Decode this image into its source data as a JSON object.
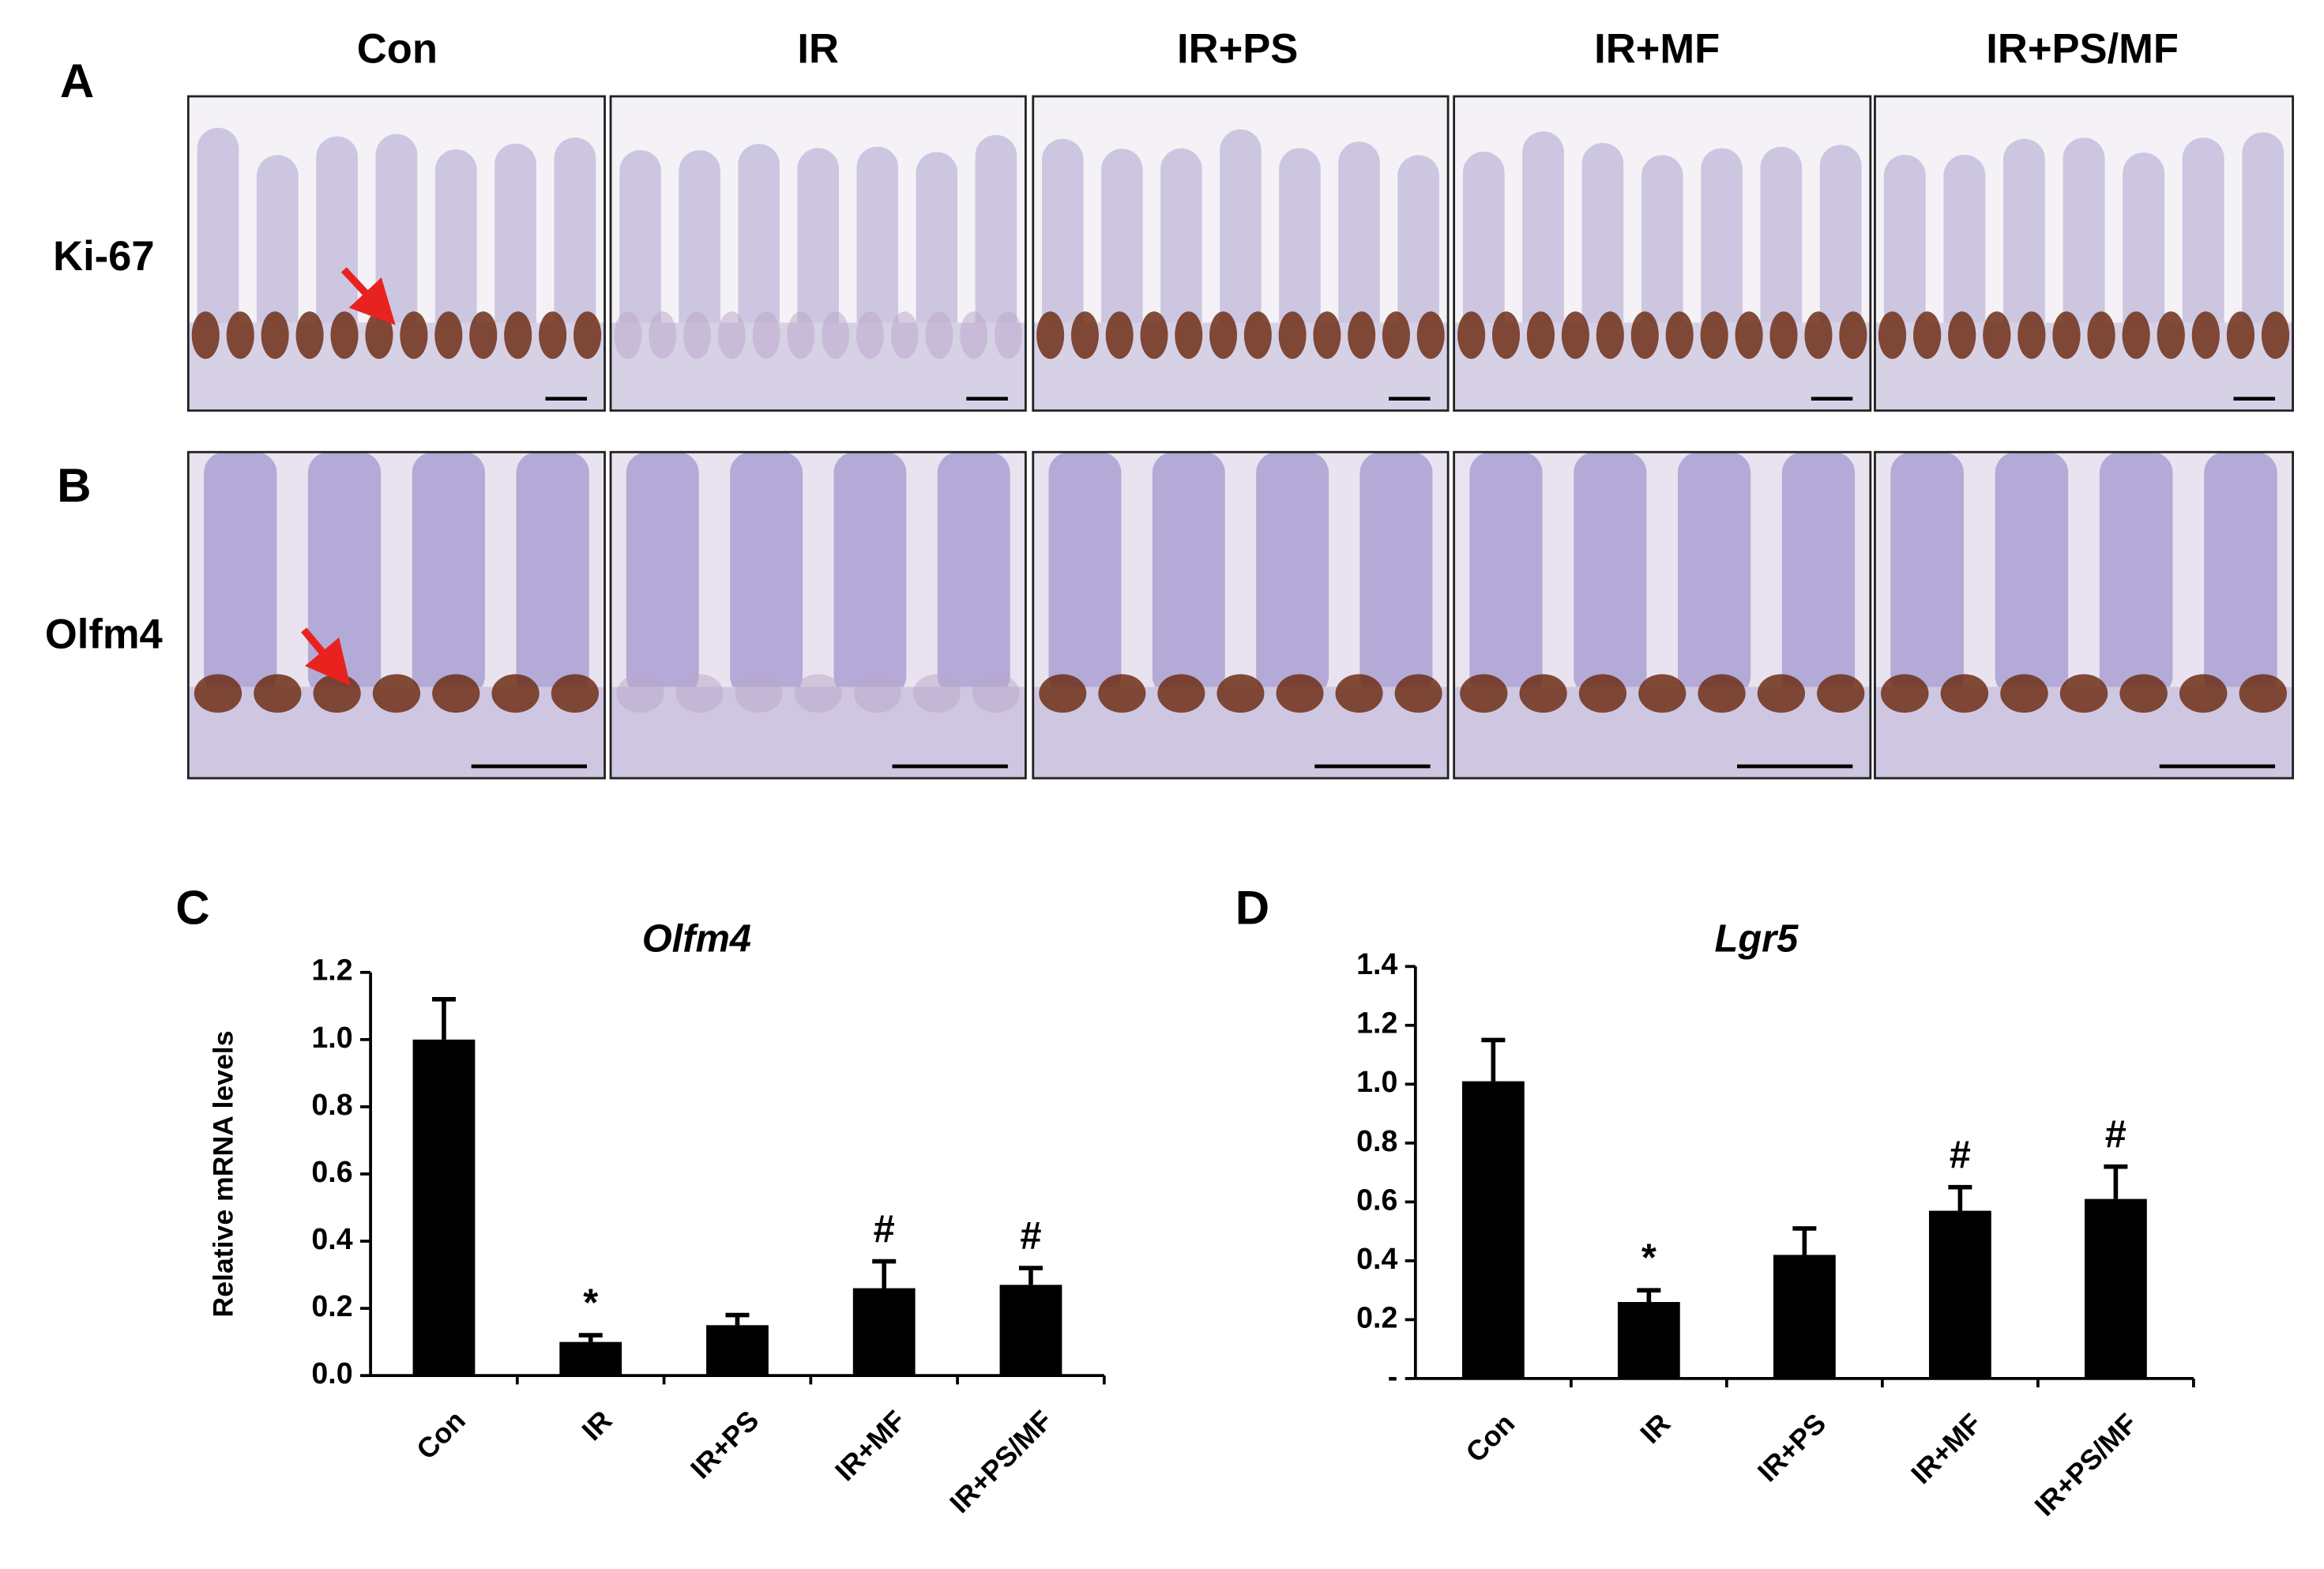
{
  "figure": {
    "panel_labels": [
      "A",
      "B",
      "C",
      "D"
    ],
    "columns": [
      "Con",
      "IR",
      "IR+PS",
      "IR+MF",
      "IR+PS/MF"
    ],
    "rows": [
      "Ki-67",
      "Olfm4"
    ]
  },
  "chart_data": [
    {
      "type": "bar",
      "title": "Olfm4",
      "ylabel": "Relative mRNA levels",
      "categories": [
        "Con",
        "IR",
        "IR+PS",
        "IR+MF",
        "IR+PS/MF"
      ],
      "values": [
        1.0,
        0.1,
        0.15,
        0.26,
        0.27
      ],
      "errors": [
        0.12,
        0.02,
        0.03,
        0.08,
        0.05
      ],
      "annotations": [
        null,
        "*",
        null,
        "#",
        "#"
      ],
      "color": "#000000",
      "ylim": [
        0,
        1.2
      ],
      "yticks": [
        {
          "value": 0,
          "label": "0.0"
        },
        0.2,
        0.4,
        0.6,
        0.8,
        {
          "value": 1,
          "label": "1.0"
        },
        1.2
      ]
    },
    {
      "type": "bar",
      "title": "Lgr5",
      "categories": [
        "Con",
        "IR",
        "IR+PS",
        "IR+MF",
        "IR+PS/MF"
      ],
      "values": [
        1.01,
        0.26,
        0.42,
        0.57,
        0.61
      ],
      "errors": [
        0.14,
        0.04,
        0.09,
        0.08,
        0.11
      ],
      "annotations": [
        null,
        "*",
        null,
        "#",
        "#"
      ],
      "color": "#000000",
      "ylim": [
        0,
        1.4
      ],
      "yticks": [
        {
          "value": 0,
          "label": "-"
        },
        0.2,
        0.4,
        0.6,
        0.8,
        {
          "value": 1,
          "label": "1.0"
        },
        1.2,
        1.4
      ]
    }
  ]
}
